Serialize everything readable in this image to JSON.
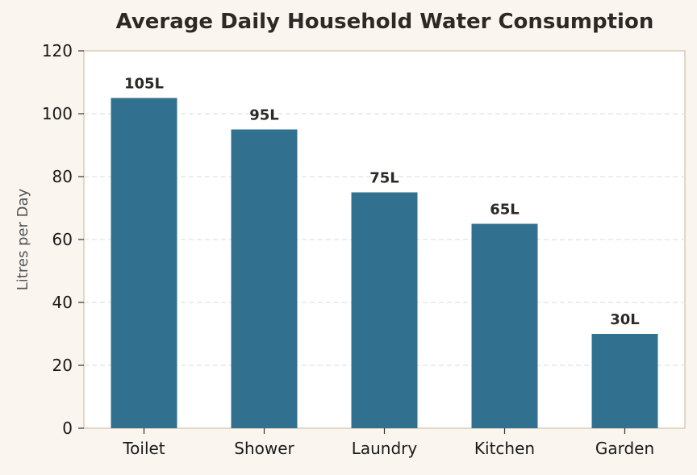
{
  "chart_data": {
    "type": "bar",
    "title": "Average Daily Household Water Consumption",
    "xlabel": "",
    "ylabel": "Litres per Day",
    "categories": [
      "Toilet",
      "Shower",
      "Laundry",
      "Kitchen",
      "Garden"
    ],
    "values": [
      105,
      95,
      75,
      65,
      30
    ],
    "data_labels": [
      "105L",
      "95L",
      "75L",
      "65L",
      "30L"
    ],
    "ylim": [
      0,
      120
    ],
    "yticks": [
      0,
      20,
      40,
      60,
      80,
      100,
      120
    ],
    "ytick_labels": [
      "0",
      "20",
      "40",
      "60",
      "80",
      "100",
      "120"
    ],
    "grid": "horizontal dashed",
    "legend": "none",
    "colors": {
      "bar": "#31708e",
      "page_background": "#faf5ef",
      "plot_background": "#ffffff",
      "plot_border": "#d9cbb7",
      "grid": "#e2e2e2"
    }
  }
}
